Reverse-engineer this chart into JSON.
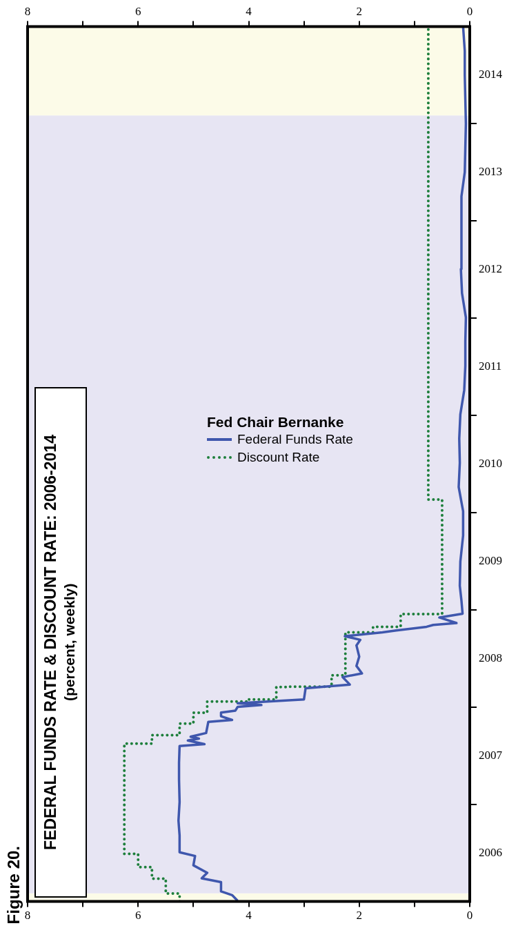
{
  "chart_data": {
    "type": "line",
    "orientation": "horizontal",
    "title": "FEDERAL FUNDS RATE & DISCOUNT RATE: 2006-2014",
    "subtitle": "(percent, weekly)",
    "legend_title": "Fed Chair Bernanke",
    "legend": "top",
    "annotations": [
      "Figure 20."
    ],
    "ylim": [
      "2006-01-01",
      "2015-01-01"
    ],
    "yticks": [
      {
        "value": "2006-07-02",
        "label": "2006"
      },
      {
        "value": "2007-01-01",
        "label": null
      },
      {
        "value": "2007-07-02",
        "label": "2007"
      },
      {
        "value": "2008-01-01",
        "label": null
      },
      {
        "value": "2008-07-02",
        "label": "2008"
      },
      {
        "value": "2009-01-01",
        "label": null
      },
      {
        "value": "2009-07-02",
        "label": "2009"
      },
      {
        "value": "2010-01-01",
        "label": null
      },
      {
        "value": "2010-07-02",
        "label": "2010"
      },
      {
        "value": "2011-01-01",
        "label": null
      },
      {
        "value": "2011-07-02",
        "label": "2011"
      },
      {
        "value": "2012-01-01",
        "label": null
      },
      {
        "value": "2012-07-02",
        "label": "2012"
      },
      {
        "value": "2013-01-01",
        "label": null
      },
      {
        "value": "2013-07-02",
        "label": "2013"
      },
      {
        "value": "2014-01-01",
        "label": null
      },
      {
        "value": "2014-07-02",
        "label": "2014"
      }
    ],
    "xlim": [
      8,
      0
    ],
    "xticks": [
      0,
      {
        "value": 1,
        "label": null
      },
      2,
      {
        "value": 3,
        "label": null
      },
      4,
      {
        "value": 5,
        "label": null
      },
      6,
      {
        "value": 7,
        "label": null
      },
      8
    ],
    "x2lim": [
      8,
      0
    ],
    "x2ticks": [
      0,
      {
        "value": 1,
        "label": null
      },
      2,
      {
        "value": 3,
        "label": null
      },
      4,
      {
        "value": 5,
        "label": null
      },
      6,
      {
        "value": 7,
        "label": null
      },
      8
    ],
    "grid": false,
    "bands": [
      {
        "axis": "y",
        "from": "2006-01-01",
        "to": "2006-02-01",
        "color": "#fcfbe8"
      },
      {
        "axis": "y",
        "from": "2006-02-01",
        "to": "2014-02-01",
        "color": "#e7e5f3"
      },
      {
        "axis": "y",
        "from": "2014-02-01",
        "to": "2015-01-01",
        "color": "#fcfbe8"
      }
    ],
    "series": [
      {
        "name": "Federal Funds Rate",
        "type": "line",
        "color": "#3f57ad",
        "line_style": "solid",
        "x": [
          "2006-01-04",
          "2006-01-25",
          "2006-02-08",
          "2006-03-15",
          "2006-03-29",
          "2006-04-19",
          "2006-05-17",
          "2006-06-21",
          "2006-07-05",
          "2006-09-06",
          "2006-11-01",
          "2007-01-10",
          "2007-04-04",
          "2007-06-06",
          "2007-08-08",
          "2007-08-15",
          "2007-08-29",
          "2007-09-05",
          "2007-09-12",
          "2007-09-26",
          "2007-11-07",
          "2007-11-14",
          "2007-11-28",
          "2007-12-12",
          "2007-12-19",
          "2008-01-02",
          "2008-01-09",
          "2008-01-16",
          "2008-01-30",
          "2008-03-12",
          "2008-03-26",
          "2008-04-23",
          "2008-05-07",
          "2008-06-04",
          "2008-07-09",
          "2008-08-20",
          "2008-09-10",
          "2008-09-24",
          "2008-10-08",
          "2008-10-15",
          "2008-10-29",
          "2008-11-05",
          "2008-11-12",
          "2008-12-03",
          "2008-12-17",
          "2009-02-04",
          "2009-04-01",
          "2009-07-01",
          "2009-10-07",
          "2010-01-06",
          "2010-04-07",
          "2010-07-07",
          "2010-10-06",
          "2011-01-05",
          "2011-04-06",
          "2011-07-06",
          "2011-10-05",
          "2012-01-04",
          "2012-04-04",
          "2012-07-04",
          "2012-10-03",
          "2013-01-02",
          "2013-04-03",
          "2013-07-03",
          "2013-10-02",
          "2014-01-01",
          "2014-04-02",
          "2014-07-02",
          "2014-10-01",
          "2014-12-31"
        ],
        "values": [
          4.2,
          4.3,
          4.5,
          4.5,
          4.85,
          4.75,
          5.0,
          4.97,
          5.25,
          5.25,
          5.27,
          5.25,
          5.26,
          5.26,
          5.25,
          4.8,
          5.1,
          4.9,
          5.05,
          4.77,
          4.73,
          4.3,
          4.5,
          4.5,
          4.24,
          4.2,
          3.77,
          4.2,
          3.0,
          2.97,
          2.17,
          2.3,
          1.95,
          2.05,
          2.0,
          2.05,
          1.98,
          2.26,
          1.58,
          1.33,
          0.78,
          0.66,
          0.24,
          0.55,
          0.13,
          0.15,
          0.18,
          0.17,
          0.12,
          0.12,
          0.2,
          0.18,
          0.19,
          0.17,
          0.1,
          0.08,
          0.08,
          0.07,
          0.14,
          0.16,
          0.15,
          0.15,
          0.15,
          0.09,
          0.08,
          0.07,
          0.08,
          0.09,
          0.09,
          0.12
        ]
      },
      {
        "name": "Discount Rate",
        "type": "step",
        "color": "#1e7f3c",
        "line_style": "dotted",
        "x": [
          "2006-01-01",
          "2006-01-31",
          "2006-03-28",
          "2006-05-10",
          "2006-06-29",
          "2007-08-17",
          "2007-09-18",
          "2007-10-31",
          "2007-12-11",
          "2008-01-22",
          "2008-01-30",
          "2008-03-17",
          "2008-03-18",
          "2008-04-30",
          "2008-10-08",
          "2008-10-29",
          "2008-12-16",
          "2010-02-19",
          "2014-12-31"
        ],
        "values": [
          5.25,
          5.5,
          5.75,
          6.0,
          6.25,
          5.75,
          5.25,
          5.0,
          4.75,
          4.0,
          3.5,
          3.25,
          2.5,
          2.25,
          1.75,
          1.25,
          0.5,
          0.75,
          0.75
        ]
      }
    ]
  }
}
